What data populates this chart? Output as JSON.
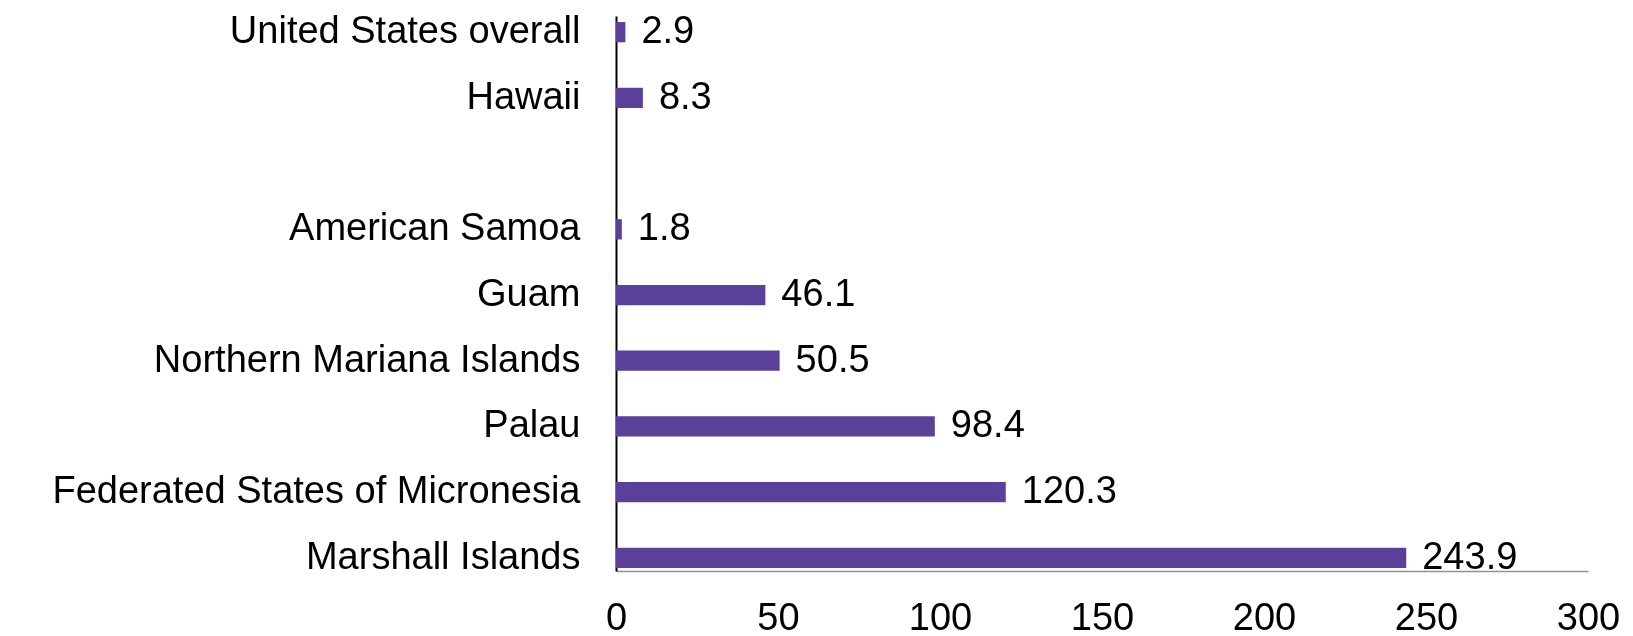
{
  "chart_data": {
    "type": "bar",
    "orientation": "horizontal",
    "categories": [
      "United States overall",
      "Hawaii",
      null,
      "American Samoa",
      "Guam",
      "Northern Mariana Islands",
      "Palau",
      "Federated States of Micronesia",
      "Marshall Islands"
    ],
    "values": [
      2.9,
      8.3,
      null,
      1.8,
      46.1,
      50.5,
      98.4,
      120.3,
      243.9
    ],
    "color": "#5b409a",
    "xlim": [
      0,
      300
    ],
    "xticks": [
      0,
      50,
      100,
      150,
      200,
      250,
      300
    ],
    "data_labels": true
  }
}
